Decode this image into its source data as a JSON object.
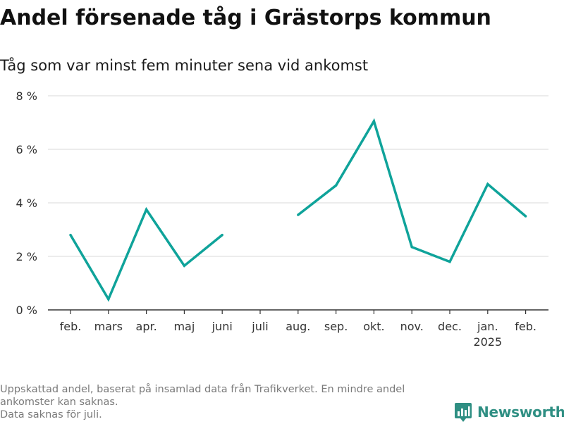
{
  "title": "Andel försenade tåg i Grästorps kommun",
  "subtitle": "Tåg som var minst fem minuter sena vid ankomst",
  "footnote": {
    "line1": "Uppskattad andel, baserat på insamlad data från Trafikverket. En mindre andel ankomster kan saknas.",
    "line2": "Data saknas för juli."
  },
  "brand": {
    "name": "Newsworthy",
    "color": "#2f8f83"
  },
  "chart_data": {
    "type": "line",
    "title": "Andel försenade tåg i Grästorps kommun",
    "subtitle": "Tåg som var minst fem minuter sena vid ankomst",
    "xlabel": "",
    "ylabel": "",
    "categories": [
      "feb.",
      "mars",
      "apr.",
      "maj",
      "juni",
      "juli",
      "aug.",
      "sep.",
      "okt.",
      "nov.",
      "dec.",
      "jan.",
      "feb."
    ],
    "year_labels": [
      "",
      "",
      "",
      "",
      "",
      "",
      "",
      "",
      "",
      "",
      "",
      "2025",
      ""
    ],
    "series": [
      {
        "name": "",
        "values": [
          2.8,
          0.4,
          3.75,
          1.65,
          2.8,
          null,
          3.55,
          4.65,
          7.05,
          2.35,
          1.8,
          4.7,
          3.5
        ],
        "color": "#0fa39a"
      }
    ],
    "ylim": [
      0,
      8
    ],
    "yticks": [
      0,
      2,
      4,
      6,
      8
    ],
    "ytick_labels": [
      "0 %",
      "2 %",
      "4 %",
      "6 %",
      "8 %"
    ],
    "grid": true,
    "legend": "none"
  }
}
